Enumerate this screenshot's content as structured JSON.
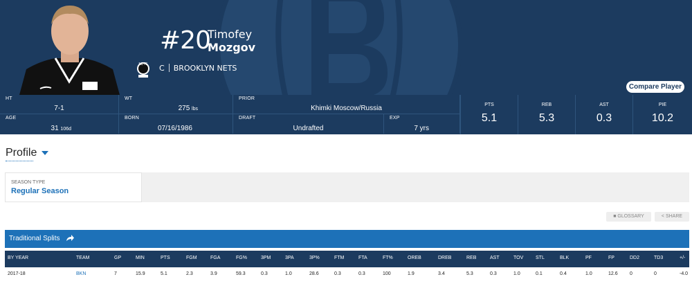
{
  "player": {
    "number": "#20",
    "first_name": "Timofey",
    "last_name": "Mozgov",
    "position": "C",
    "team": "BROOKLYN NETS",
    "compare_button": "Compare Player",
    "team_logo_text": "NETS"
  },
  "info": {
    "ht_label": "HT",
    "ht_value": "7-1",
    "wt_label": "WT",
    "wt_value": "275",
    "wt_unit": "lbs",
    "prior_label": "PRIOR",
    "prior_value": "Khimki Moscow/Russia",
    "age_label": "AGE",
    "age_value": "31",
    "age_days": "106d",
    "born_label": "BORN",
    "born_value": "07/16/1986",
    "draft_label": "DRAFT",
    "draft_value": "Undrafted",
    "exp_label": "EXP",
    "exp_value": "7 yrs"
  },
  "stats": [
    {
      "label": "PTS",
      "value": "5.1"
    },
    {
      "label": "REB",
      "value": "5.3"
    },
    {
      "label": "AST",
      "value": "0.3"
    },
    {
      "label": "PIE",
      "value": "10.2"
    }
  ],
  "profile": {
    "title": "Profile",
    "season_type_label": "SEASON TYPE",
    "season_type_value": "Regular Season",
    "glossary": "GLOSSARY",
    "share": "SHARE"
  },
  "splits": {
    "title": "Traditional Splits",
    "headers": [
      "BY YEAR",
      "TEAM",
      "GP",
      "MIN",
      "PTS",
      "FGM",
      "FGA",
      "FG%",
      "3PM",
      "3PA",
      "3P%",
      "FTM",
      "FTA",
      "FT%",
      "OREB",
      "DREB",
      "REB",
      "AST",
      "TOV",
      "STL",
      "BLK",
      "PF",
      "FP",
      "DD2",
      "TD3",
      "+/-"
    ],
    "rows": [
      [
        "2017-18",
        "BKN",
        "7",
        "15.9",
        "5.1",
        "2.3",
        "3.9",
        "59.3",
        "0.3",
        "1.0",
        "28.6",
        "0.3",
        "0.3",
        "100",
        "1.9",
        "3.4",
        "5.3",
        "0.3",
        "1.0",
        "0.1",
        "0.4",
        "1.0",
        "12.6",
        "0",
        "0",
        "-4.0"
      ]
    ]
  },
  "colors": {
    "navy": "#1c3b5f",
    "accent_blue": "#1d71b8"
  },
  "icons": [
    "nets-logo-icon",
    "share-arrow-icon",
    "glossary-icon",
    "share-icon",
    "caret-down-icon"
  ]
}
